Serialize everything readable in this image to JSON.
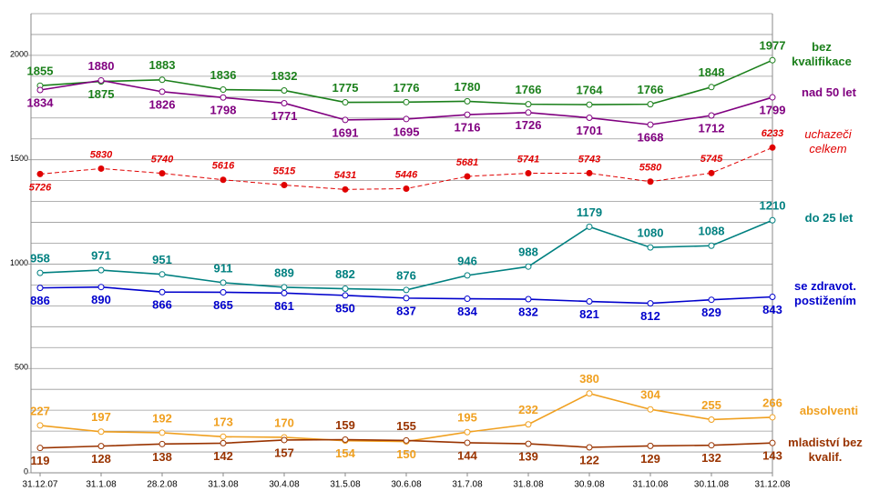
{
  "chart_data": {
    "type": "line",
    "categories": [
      "31.12.07",
      "31.1.08",
      "28.2.08",
      "31.3.08",
      "30.4.08",
      "31.5.08",
      "30.6.08",
      "31.7.08",
      "31.8.08",
      "30.9.08",
      "31.10.08",
      "30.11.08",
      "31.12.08"
    ],
    "ylim": [
      0,
      2200
    ],
    "yticks": [
      0,
      500,
      1000,
      1500,
      2000
    ],
    "minor_yticks": [
      100,
      200,
      300,
      400,
      600,
      700,
      800,
      900,
      1100,
      1200,
      1300,
      1400,
      1600,
      1700,
      1800,
      1900,
      2100,
      2200
    ],
    "y2lim": [
      0,
      8800
    ],
    "grid": true,
    "series": [
      {
        "name": "bez kvalifikace",
        "color": "#1a7f1a",
        "values": [
          1855,
          1875,
          1883,
          1836,
          1832,
          1775,
          1776,
          1780,
          1766,
          1764,
          1766,
          1848,
          1977
        ]
      },
      {
        "name": "nad 50 let",
        "color": "#800080",
        "values": [
          1834,
          1880,
          1826,
          1798,
          1771,
          1691,
          1695,
          1716,
          1726,
          1701,
          1668,
          1712,
          1799
        ]
      },
      {
        "name": "uchazeči celkem",
        "color": "#e00000",
        "axis": "y2",
        "values": [
          5726,
          5830,
          5740,
          5616,
          5515,
          5431,
          5446,
          5681,
          5741,
          5743,
          5580,
          5745,
          6233
        ]
      },
      {
        "name": "do 25 let",
        "color": "#008080",
        "values": [
          958,
          971,
          951,
          911,
          889,
          882,
          876,
          946,
          988,
          1179,
          1080,
          1088,
          1210
        ]
      },
      {
        "name": "se zdravot. postižením",
        "color": "#0000cc",
        "values": [
          886,
          890,
          866,
          865,
          861,
          850,
          837,
          834,
          832,
          821,
          812,
          829,
          843
        ]
      },
      {
        "name": "absolventi",
        "color": "#f0a020",
        "values": [
          227,
          197,
          192,
          173,
          170,
          154,
          150,
          195,
          232,
          380,
          304,
          255,
          266
        ]
      },
      {
        "name": "mladiství bez kvalif.",
        "color": "#993300",
        "values": [
          119,
          128,
          138,
          142,
          157,
          159,
          155,
          144,
          139,
          122,
          129,
          132,
          143
        ]
      }
    ]
  }
}
